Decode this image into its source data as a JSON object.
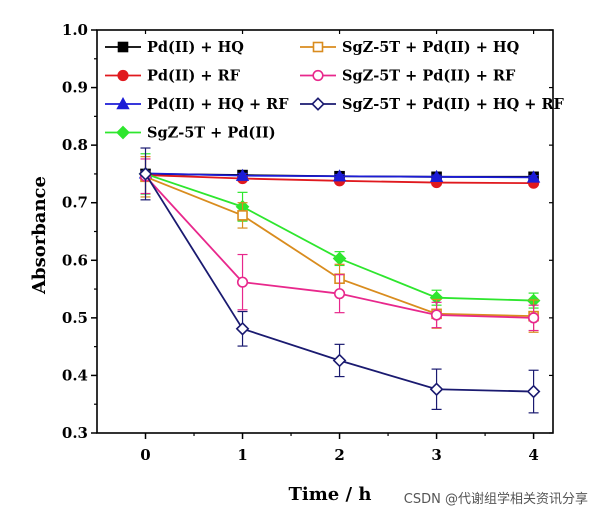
{
  "chart_data": {
    "type": "line",
    "xlabel": "Time / h",
    "ylabel": "Absorbance",
    "x": [
      0,
      1,
      2,
      3,
      4
    ],
    "xlim": [
      -0.5,
      4.2
    ],
    "ylim": [
      0.3,
      1.0
    ],
    "xticks": [
      "0",
      "1",
      "2",
      "3",
      "4"
    ],
    "yticks": [
      "0.3",
      "0.4",
      "0.5",
      "0.6",
      "0.7",
      "0.8",
      "0.9",
      "1.0"
    ],
    "legend_position": "top-left",
    "series": [
      {
        "name": "Pd(II) + HQ",
        "color": "#000000",
        "marker": "square-filled",
        "values": [
          0.75,
          0.748,
          0.746,
          0.745,
          0.745
        ],
        "errors": [
          0.005,
          0.004,
          0.003,
          0.003,
          0.003
        ]
      },
      {
        "name": "Pd(II) + RF",
        "color": "#e0191e",
        "marker": "circle-filled",
        "values": [
          0.748,
          0.742,
          0.738,
          0.735,
          0.734
        ],
        "errors": [
          0.004,
          0.004,
          0.003,
          0.003,
          0.003
        ]
      },
      {
        "name": "Pd(II) + HQ + RF",
        "color": "#1c1cd6",
        "marker": "triangle-filled",
        "values": [
          0.751,
          0.747,
          0.746,
          0.745,
          0.744
        ],
        "errors": [
          0.004,
          0.004,
          0.003,
          0.003,
          0.003
        ]
      },
      {
        "name": "SgZ-5T + Pd(II)",
        "color": "#2ee62e",
        "marker": "diamond-filled",
        "values": [
          0.75,
          0.693,
          0.603,
          0.535,
          0.53
        ],
        "errors": [
          0.035,
          0.025,
          0.012,
          0.013,
          0.013
        ]
      },
      {
        "name": "SgZ-5T + Pd(II) + HQ",
        "color": "#d98c1e",
        "marker": "square-open",
        "values": [
          0.745,
          0.678,
          0.568,
          0.507,
          0.503
        ],
        "errors": [
          0.035,
          0.022,
          0.025,
          0.025,
          0.028
        ]
      },
      {
        "name": "SgZ-5T + Pd(II) + RF",
        "color": "#e8288c",
        "marker": "circle-open",
        "values": [
          0.746,
          0.562,
          0.542,
          0.505,
          0.5
        ],
        "errors": [
          0.03,
          0.048,
          0.033,
          0.022,
          0.022
        ]
      },
      {
        "name": "SgZ-5T + Pd(II) + HQ + RF",
        "color": "#1a1a70",
        "marker": "diamond-open",
        "values": [
          0.75,
          0.481,
          0.426,
          0.376,
          0.372
        ],
        "errors": [
          0.045,
          0.03,
          0.028,
          0.035,
          0.037
        ]
      }
    ]
  },
  "watermark": "CSDN @代谢组学相关资讯分享"
}
